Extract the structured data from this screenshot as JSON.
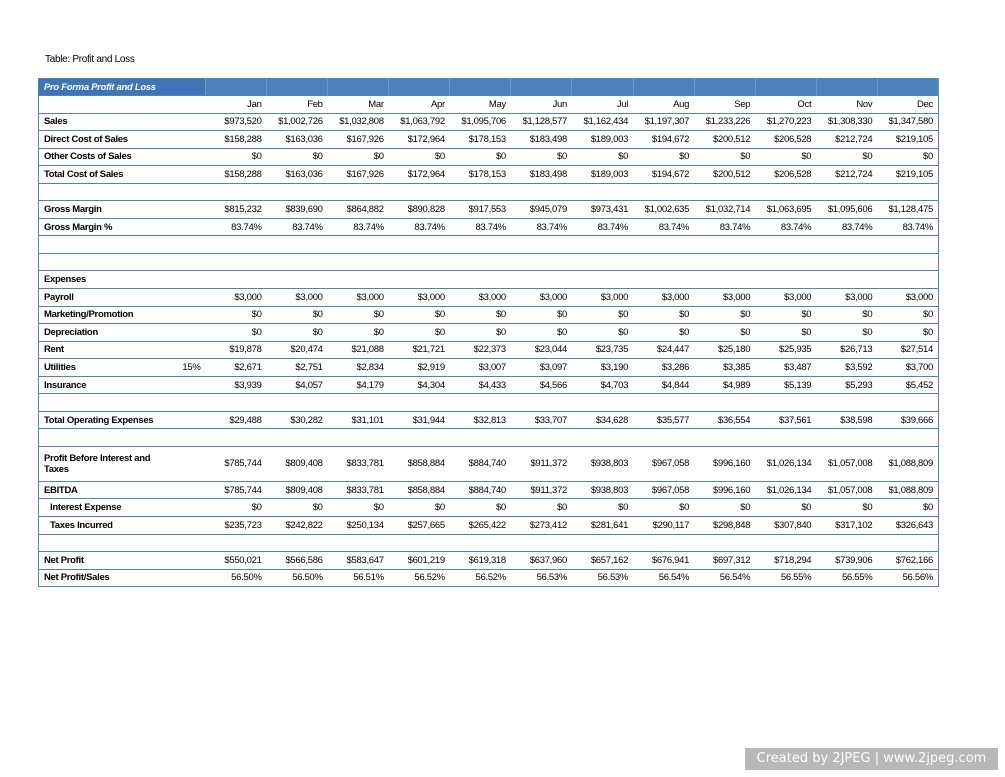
{
  "caption": "Table: Profit and Loss",
  "table": {
    "title": "Pro Forma Profit and Loss",
    "columns": [
      "Jan",
      "Feb",
      "Mar",
      "Apr",
      "May",
      "Jun",
      "Jul",
      "Aug",
      "Sep",
      "Oct",
      "Nov",
      "Dec"
    ],
    "rows": [
      {
        "label": "Sales",
        "values": [
          "$973,520",
          "$1,002,726",
          "$1,032,808",
          "$1,063,792",
          "$1,095,706",
          "$1,128,577",
          "$1,162,434",
          "$1,197,307",
          "$1,233,226",
          "$1,270,223",
          "$1,308,330",
          "$1,347,580"
        ]
      },
      {
        "label": "Direct Cost of Sales",
        "values": [
          "$158,288",
          "$163,036",
          "$167,926",
          "$172,964",
          "$178,153",
          "$183,498",
          "$189,003",
          "$194,672",
          "$200,512",
          "$206,528",
          "$212,724",
          "$219,105"
        ]
      },
      {
        "label": "Other Costs of Sales",
        "values": [
          "$0",
          "$0",
          "$0",
          "$0",
          "$0",
          "$0",
          "$0",
          "$0",
          "$0",
          "$0",
          "$0",
          "$0"
        ]
      },
      {
        "label": "Total Cost of Sales",
        "values": [
          "$158,288",
          "$163,036",
          "$167,926",
          "$172,964",
          "$178,153",
          "$183,498",
          "$189,003",
          "$194,672",
          "$200,512",
          "$206,528",
          "$212,724",
          "$219,105"
        ]
      },
      null,
      {
        "label": "Gross Margin",
        "values": [
          "$815,232",
          "$839,690",
          "$864,882",
          "$890,828",
          "$917,553",
          "$945,079",
          "$973,431",
          "$1,002,635",
          "$1,032,714",
          "$1,063,695",
          "$1,095,606",
          "$1,128,475"
        ]
      },
      {
        "label": "Gross Margin %",
        "values": [
          "83.74%",
          "83.74%",
          "83.74%",
          "83.74%",
          "83.74%",
          "83.74%",
          "83.74%",
          "83.74%",
          "83.74%",
          "83.74%",
          "83.74%",
          "83.74%"
        ]
      },
      null,
      null,
      {
        "label": "Expenses"
      },
      {
        "label": "Payroll",
        "values": [
          "$3,000",
          "$3,000",
          "$3,000",
          "$3,000",
          "$3,000",
          "$3,000",
          "$3,000",
          "$3,000",
          "$3,000",
          "$3,000",
          "$3,000",
          "$3,000"
        ]
      },
      {
        "label": "Marketing/Promotion",
        "values": [
          "$0",
          "$0",
          "$0",
          "$0",
          "$0",
          "$0",
          "$0",
          "$0",
          "$0",
          "$0",
          "$0",
          "$0"
        ]
      },
      {
        "label": "Depreciation",
        "values": [
          "$0",
          "$0",
          "$0",
          "$0",
          "$0",
          "$0",
          "$0",
          "$0",
          "$0",
          "$0",
          "$0",
          "$0"
        ]
      },
      {
        "label": "Rent",
        "values": [
          "$19,878",
          "$20,474",
          "$21,088",
          "$21,721",
          "$22,373",
          "$23,044",
          "$23,735",
          "$24,447",
          "$25,180",
          "$25,935",
          "$26,713",
          "$27,514"
        ]
      },
      {
        "label": "Utilities",
        "rate": "15%",
        "values": [
          "$2,671",
          "$2,751",
          "$2,834",
          "$2,919",
          "$3,007",
          "$3,097",
          "$3,190",
          "$3,286",
          "$3,385",
          "$3,487",
          "$3,592",
          "$3,700"
        ]
      },
      {
        "label": "Insurance",
        "values": [
          "$3,939",
          "$4,057",
          "$4,179",
          "$4,304",
          "$4,433",
          "$4,566",
          "$4,703",
          "$4,844",
          "$4,989",
          "$5,139",
          "$5,293",
          "$5,452"
        ]
      },
      null,
      {
        "label": "Total Operating Expenses",
        "values": [
          "$29,488",
          "$30,282",
          "$31,101",
          "$31,944",
          "$32,813",
          "$33,707",
          "$34,628",
          "$35,577",
          "$36,554",
          "$37,561",
          "$38,598",
          "$39,666"
        ]
      },
      null,
      {
        "label": "Profit Before Interest and Taxes",
        "values": [
          "$785,744",
          "$809,408",
          "$833,781",
          "$858,884",
          "$884,740",
          "$911,372",
          "$938,803",
          "$967,058",
          "$996,160",
          "$1,026,134",
          "$1,057,008",
          "$1,088,809"
        ]
      },
      {
        "label": "EBITDA",
        "values": [
          "$785,744",
          "$809,408",
          "$833,781",
          "$858,884",
          "$884,740",
          "$911,372",
          "$938,803",
          "$967,058",
          "$996,160",
          "$1,026,134",
          "$1,057,008",
          "$1,088,809"
        ]
      },
      {
        "label": "Interest Expense",
        "indent": true,
        "values": [
          "$0",
          "$0",
          "$0",
          "$0",
          "$0",
          "$0",
          "$0",
          "$0",
          "$0",
          "$0",
          "$0",
          "$0"
        ]
      },
      {
        "label": "Taxes Incurred",
        "indent": true,
        "values": [
          "$235,723",
          "$242,822",
          "$250,134",
          "$257,665",
          "$265,422",
          "$273,412",
          "$281,641",
          "$290,117",
          "$298,848",
          "$307,840",
          "$317,102",
          "$326,643"
        ]
      },
      null,
      {
        "label": "Net Profit",
        "values": [
          "$550,021",
          "$566,586",
          "$583,647",
          "$601,219",
          "$619,318",
          "$637,960",
          "$657,162",
          "$676,941",
          "$697,312",
          "$718,294",
          "$739,906",
          "$762,166"
        ]
      },
      {
        "label": "Net Profit/Sales",
        "values": [
          "56.50%",
          "56.50%",
          "56.51%",
          "56.52%",
          "56.52%",
          "56.53%",
          "56.53%",
          "56.54%",
          "56.54%",
          "56.55%",
          "56.55%",
          "56.56%"
        ]
      }
    ]
  },
  "watermark": "Created by 2JPEG | www.2jpeg.com"
}
